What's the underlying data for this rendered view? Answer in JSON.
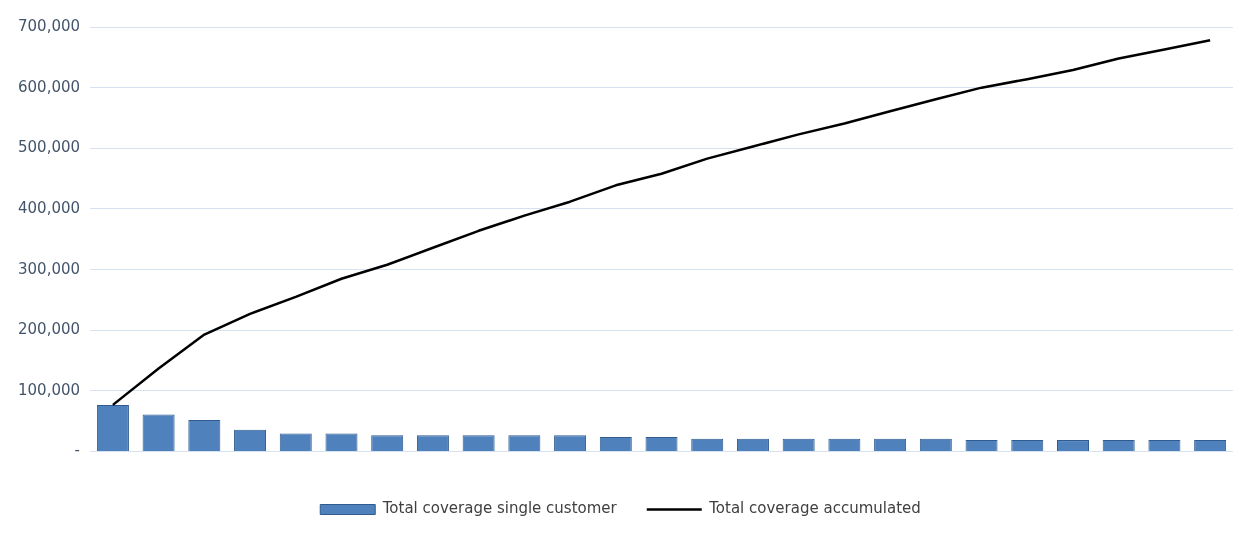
{
  "chart_data": {
    "type": "bar",
    "categories": [
      null,
      null,
      null,
      null,
      null,
      null,
      null,
      null,
      null,
      null,
      null,
      null,
      null,
      null,
      null,
      null,
      null,
      null,
      null,
      null,
      null,
      null,
      null,
      null,
      null
    ],
    "series": [
      {
        "name": "Total coverage single customer",
        "color": "#4f81bd",
        "values": [
          77000,
          61000,
          52000,
          36000,
          30000,
          30000,
          27000,
          27000,
          27000,
          27000,
          27000,
          24000,
          24000,
          21000,
          21000,
          21000,
          21000,
          21000,
          21000,
          19000,
          19000,
          19000,
          19000,
          19000,
          19000
        ]
      },
      {
        "name": "Total coverage accumulated",
        "type": "line",
        "color": "#000000",
        "values": [
          77000,
          137000,
          193000,
          227000,
          255000,
          285000,
          308000,
          336000,
          364000,
          389000,
          412000,
          439000,
          458000,
          483000,
          503000,
          523000,
          541000,
          561000,
          581000,
          600000,
          614000,
          629000,
          648000,
          663000,
          678000
        ]
      }
    ],
    "ylim": [
      0,
      700000
    ],
    "yticks": [
      {
        "value": 0,
        "label": "-"
      },
      {
        "value": 100000,
        "label": "100,000"
      },
      {
        "value": 200000,
        "label": "200,000"
      },
      {
        "value": 300000,
        "label": "300,000"
      },
      {
        "value": 400000,
        "label": "400,000"
      },
      {
        "value": 500000,
        "label": "500,000"
      },
      {
        "value": 600000,
        "label": "600,000"
      },
      {
        "value": 700000,
        "label": "700,000"
      }
    ],
    "grid": "y",
    "legend": "bottom",
    "marker": "none",
    "line_style": "solid"
  }
}
